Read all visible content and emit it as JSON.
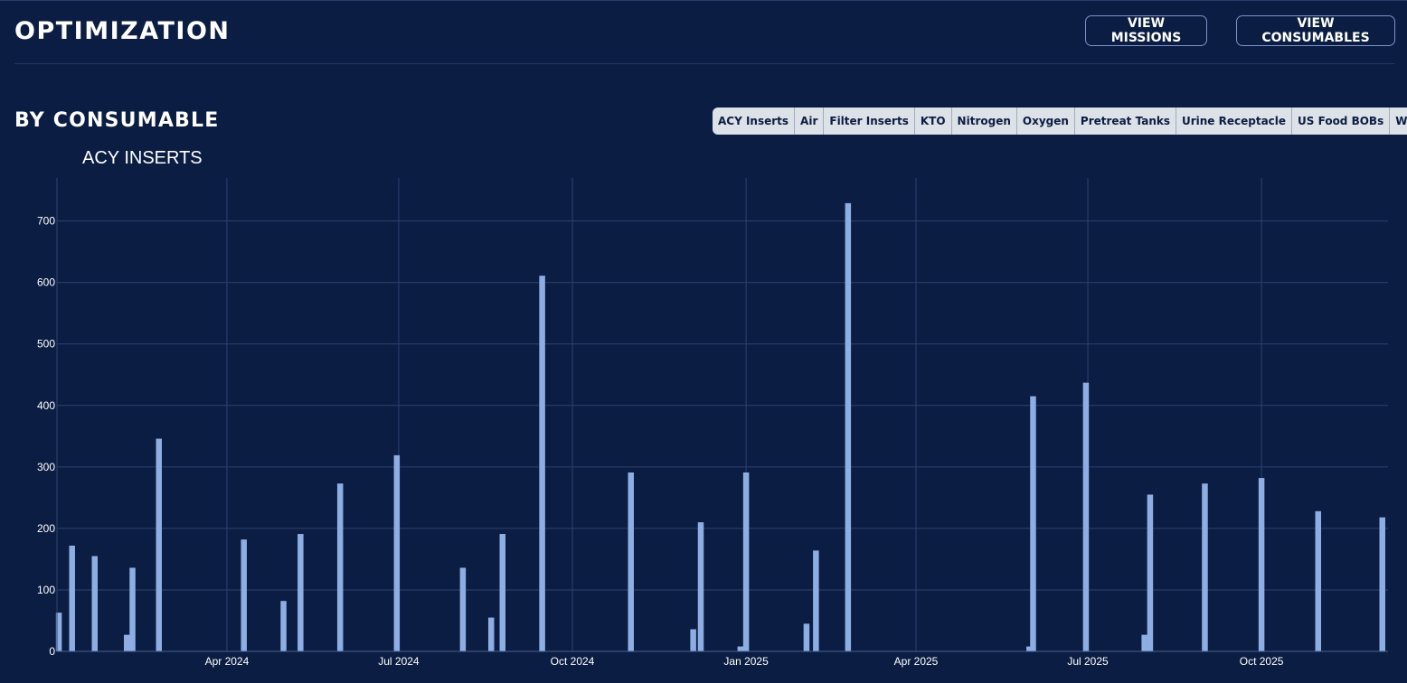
{
  "header": {
    "title": "OPTIMIZATION",
    "buttons": {
      "missions": "VIEW MISSIONS",
      "consumables": "VIEW CONSUMABLES"
    }
  },
  "section": {
    "title": "BY CONSUMABLE"
  },
  "tabs": [
    "ACY Inserts",
    "Air",
    "Filter Inserts",
    "KTO",
    "Nitrogen",
    "Oxygen",
    "Pretreat Tanks",
    "Urine Receptacle",
    "US Food BOBs",
    "Water"
  ],
  "selected_tab": "ACY Inserts",
  "colors": {
    "background": "#0b1d42",
    "bar": "#8eaee3",
    "grid": "#2c4272",
    "button_border": "#7d93c9",
    "tab_bg": "#dde1e8"
  },
  "chart_data": {
    "type": "bar",
    "title": "ACY INSERTS",
    "xlabel": "",
    "ylabel": "",
    "xlim": [
      "2024-01-02",
      "2025-12-07"
    ],
    "ylim": [
      0,
      770
    ],
    "yticks": [
      0,
      100,
      200,
      300,
      400,
      500,
      600,
      700
    ],
    "xticks": [
      {
        "date": "2024-04-01",
        "label": "Apr 2024"
      },
      {
        "date": "2024-07-01",
        "label": "Jul 2024"
      },
      {
        "date": "2024-10-01",
        "label": "Oct 2024"
      },
      {
        "date": "2025-01-01",
        "label": "Jan 2025"
      },
      {
        "date": "2025-04-01",
        "label": "Apr 2025"
      },
      {
        "date": "2025-07-01",
        "label": "Jul 2025"
      },
      {
        "date": "2025-10-01",
        "label": "Oct 2025"
      }
    ],
    "grid": true,
    "series": [
      {
        "points": [
          {
            "x": "2024-01-03",
            "y": 63
          },
          {
            "x": "2024-01-10",
            "y": 172
          },
          {
            "x": "2024-01-22",
            "y": 155
          },
          {
            "x": "2024-02-08",
            "y": 27
          },
          {
            "x": "2024-02-11",
            "y": 136
          },
          {
            "x": "2024-02-25",
            "y": 346
          },
          {
            "x": "2024-04-10",
            "y": 182
          },
          {
            "x": "2024-05-01",
            "y": 82
          },
          {
            "x": "2024-05-10",
            "y": 191
          },
          {
            "x": "2024-05-31",
            "y": 273
          },
          {
            "x": "2024-06-30",
            "y": 319
          },
          {
            "x": "2024-08-04",
            "y": 136
          },
          {
            "x": "2024-08-19",
            "y": 55
          },
          {
            "x": "2024-08-25",
            "y": 191
          },
          {
            "x": "2024-09-15",
            "y": 611
          },
          {
            "x": "2024-11-01",
            "y": 291
          },
          {
            "x": "2024-12-04",
            "y": 36
          },
          {
            "x": "2024-12-08",
            "y": 210
          },
          {
            "x": "2024-12-29",
            "y": 8
          },
          {
            "x": "2025-01-01",
            "y": 291
          },
          {
            "x": "2025-02-02",
            "y": 45
          },
          {
            "x": "2025-02-07",
            "y": 164
          },
          {
            "x": "2025-02-24",
            "y": 729
          },
          {
            "x": "2025-05-31",
            "y": 8
          },
          {
            "x": "2025-06-02",
            "y": 415
          },
          {
            "x": "2025-06-30",
            "y": 437
          },
          {
            "x": "2025-07-31",
            "y": 27
          },
          {
            "x": "2025-08-03",
            "y": 255
          },
          {
            "x": "2025-09-01",
            "y": 273
          },
          {
            "x": "2025-10-01",
            "y": 282
          },
          {
            "x": "2025-10-31",
            "y": 228
          },
          {
            "x": "2025-12-04",
            "y": 218
          }
        ]
      }
    ]
  }
}
